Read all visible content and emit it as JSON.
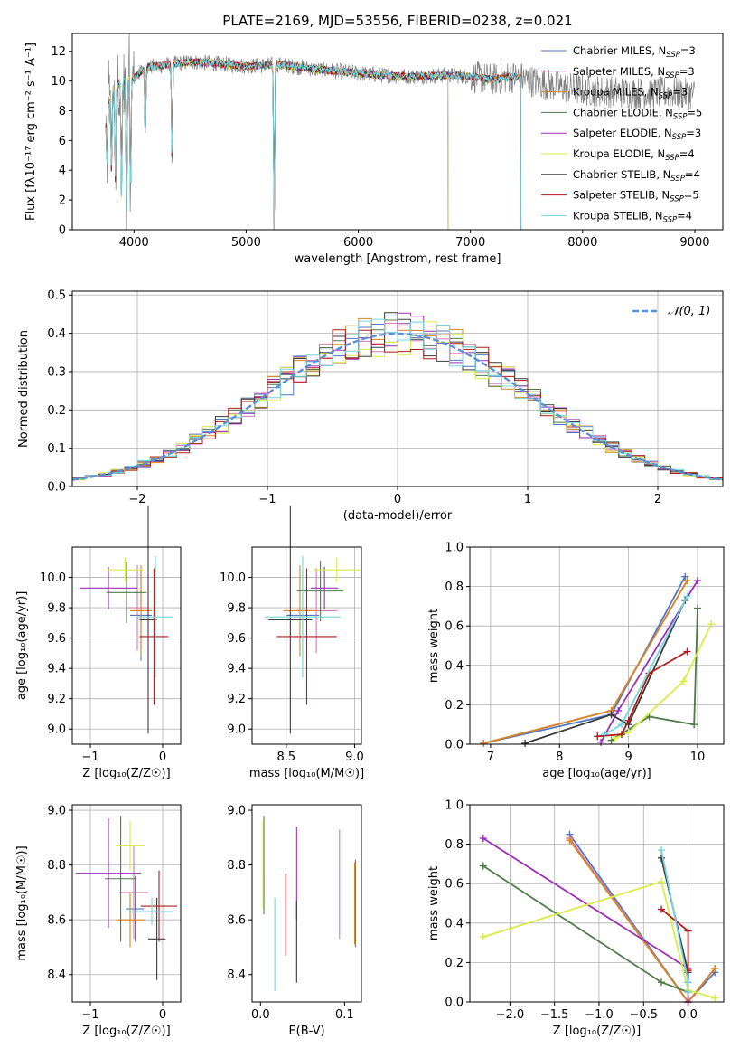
{
  "colors": {
    "Chabrier MILES": "#4e79c7",
    "Salpeter MILES": "#d877b7",
    "Kroupa MILES": "#d9861f",
    "Chabrier ELODIE": "#4f7c4a",
    "Salpeter ELODIE": "#9b2fb5",
    "Kroupa ELODIE": "#d9ec43",
    "Chabrier STELIB": "#3b3b3b",
    "Salpeter STELIB": "#b31c1c",
    "Kroupa STELIB": "#72d6df",
    "data": "#808080",
    "normal": "#5b8fd6"
  },
  "chart_data": [
    {
      "type": "line",
      "id": "spectrum",
      "title": "PLATE=2169, MJD=53556, FIBERID=0238, z=0.021",
      "xlabel": "wavelength [Angstrom, rest frame]",
      "ylabel": "Flux [fλ10⁻¹⁷ erg cm⁻² s⁻¹ A⁻¹]",
      "xlim": [
        3450,
        9250
      ],
      "ylim": [
        0,
        13.2
      ],
      "xticks": [
        4000,
        5000,
        6000,
        7000,
        8000,
        9000
      ],
      "yticks": [
        0,
        2,
        4,
        6,
        8,
        10,
        12
      ],
      "grid": false,
      "legend_position": "upper right",
      "legend": [
        {
          "name": "Chabrier MILES",
          "nssp": "3"
        },
        {
          "name": "Salpeter MILES",
          "nssp": "3"
        },
        {
          "name": "Kroupa MILES",
          "nssp": "3"
        },
        {
          "name": "Chabrier ELODIE",
          "nssp": "5"
        },
        {
          "name": "Salpeter ELODIE",
          "nssp": "3"
        },
        {
          "name": "Kroupa ELODIE",
          "nssp": "4"
        },
        {
          "name": "Chabrier STELIB",
          "nssp": "4"
        },
        {
          "name": "Salpeter STELIB",
          "nssp": "5"
        },
        {
          "name": "Kroupa STELIB",
          "nssp": "4"
        }
      ],
      "continuum": {
        "x": [
          3750,
          3800,
          3900,
          4000,
          4100,
          4300,
          4500,
          4700,
          5000,
          5300,
          5600,
          5900,
          6200,
          6500,
          6800,
          7000,
          7200,
          7300,
          7400,
          7500,
          7600,
          7800,
          8000,
          8200,
          8500,
          8800,
          9000
        ],
        "y": [
          7.5,
          9.5,
          10.0,
          10.2,
          10.9,
          11.1,
          11.3,
          11.2,
          11.0,
          11.1,
          10.8,
          10.6,
          10.4,
          10.3,
          10.4,
          10.3,
          10.1,
          10.2,
          10.3,
          10.1,
          9.9,
          9.6,
          9.4,
          9.3,
          9.2,
          9.2,
          9.1
        ]
      },
      "absorption_lines": [
        {
          "x": 3760,
          "y": 4.2
        },
        {
          "x": 3800,
          "y": 3.8
        },
        {
          "x": 3835,
          "y": 3.3
        },
        {
          "x": 3889,
          "y": 2.2
        },
        {
          "x": 3934,
          "y": 0.8
        },
        {
          "x": 3969,
          "y": 2.0
        },
        {
          "x": 4101,
          "y": 6.3
        },
        {
          "x": 4340,
          "y": 4.5
        },
        {
          "x": 5250,
          "y": 0
        }
      ],
      "model_end_x": 7450,
      "kroupa_elodie_end_x": 6800
    },
    {
      "type": "histogram",
      "id": "residuals",
      "xlabel": "(data-model)/error",
      "ylabel": "Normed distribution",
      "xlim": [
        -2.5,
        2.5
      ],
      "ylim": [
        0,
        0.51
      ],
      "xticks": [
        -2,
        -1,
        0,
        1,
        2
      ],
      "yticks": [
        0,
        0.1,
        0.2,
        0.3,
        0.4,
        0.5
      ],
      "grid": true,
      "bin_width": 0.1,
      "legend_position": "upper right",
      "reference_curve": {
        "label": "𝒩(0, 1)",
        "mean": 0,
        "sigma": 1
      }
    },
    {
      "type": "scatter",
      "id": "age-vs-z",
      "xlabel": "Z [log₁₀(Z/Z☉)]",
      "ylabel": "age  [log₁₀(age/yr)]",
      "xlim": [
        -1.25,
        0.25
      ],
      "ylim": [
        8.9,
        10.2
      ],
      "xticks": [
        -1,
        0
      ],
      "yticks": [
        9.0,
        9.2,
        9.4,
        9.6,
        9.8,
        10.0
      ],
      "grid": true,
      "points": [
        {
          "model": "Chabrier MILES",
          "x": -0.3,
          "xerr": 0.15,
          "y": 9.75,
          "yerr": 0.3
        },
        {
          "model": "Salpeter MILES",
          "x": -0.35,
          "xerr": 0.15,
          "y": 9.8,
          "yerr": 0.28
        },
        {
          "model": "Kroupa MILES",
          "x": -0.3,
          "xerr": 0.15,
          "y": 9.78,
          "yerr": 0.3
        },
        {
          "model": "Chabrier ELODIE",
          "x": -0.5,
          "xerr": 0.28,
          "y": 9.9,
          "yerr": 0.2
        },
        {
          "model": "Salpeter ELODIE",
          "x": -0.75,
          "xerr": 0.4,
          "y": 9.93,
          "yerr": 0.14
        },
        {
          "model": "Kroupa ELODIE",
          "x": -0.52,
          "xerr": 0.25,
          "y": 10.05,
          "yerr": 0.08
        },
        {
          "model": "Chabrier STELIB",
          "x": -0.2,
          "xerr": 0.12,
          "y": 9.72,
          "yerr": 0.75
        },
        {
          "model": "Salpeter STELIB",
          "x": -0.12,
          "xerr": 0.2,
          "y": 9.61,
          "yerr": 0.45
        },
        {
          "model": "Kroupa STELIB",
          "x": -0.1,
          "xerr": 0.25,
          "y": 9.74,
          "yerr": 0.4
        }
      ]
    },
    {
      "type": "scatter",
      "id": "age-vs-mass",
      "xlabel": "mass [log₁₀(M/M☉)]",
      "ylabel": "",
      "xlim": [
        8.25,
        9.05
      ],
      "ylim": [
        8.9,
        10.2
      ],
      "xticks": [
        8.5,
        9.0
      ],
      "yticks": [
        9.0,
        9.2,
        9.4,
        9.6,
        9.8,
        10.0
      ],
      "grid": true,
      "points": [
        {
          "model": "Chabrier MILES",
          "x": 8.62,
          "xerr": 0.12,
          "y": 9.75,
          "yerr": 0.3
        },
        {
          "model": "Salpeter MILES",
          "x": 8.72,
          "xerr": 0.15,
          "y": 9.78,
          "yerr": 0.28
        },
        {
          "model": "Kroupa MILES",
          "x": 8.6,
          "xerr": 0.12,
          "y": 9.78,
          "yerr": 0.3
        },
        {
          "model": "Chabrier ELODIE",
          "x": 8.75,
          "xerr": 0.17,
          "y": 9.91,
          "yerr": 0.2
        },
        {
          "model": "Salpeter ELODIE",
          "x": 8.78,
          "xerr": 0.1,
          "y": 9.93,
          "yerr": 0.14
        },
        {
          "model": "Kroupa ELODIE",
          "x": 8.87,
          "xerr": 0.17,
          "y": 10.05,
          "yerr": 0.08
        },
        {
          "model": "Chabrier STELIB",
          "x": 8.53,
          "xerr": 0.16,
          "y": 9.72,
          "yerr": 0.75
        },
        {
          "model": "Salpeter STELIB",
          "x": 8.65,
          "xerr": 0.22,
          "y": 9.61,
          "yerr": 0.45
        },
        {
          "model": "Kroupa STELIB",
          "x": 8.62,
          "xerr": 0.28,
          "y": 9.74,
          "yerr": 0.4
        }
      ]
    },
    {
      "type": "line",
      "id": "massweight-vs-age",
      "xlabel": "age  [log₁₀(age/yr)]",
      "ylabel": "mass weight",
      "xlim": [
        6.7,
        10.38
      ],
      "ylim": [
        0,
        1.0
      ],
      "xticks": [
        7,
        8,
        9,
        10
      ],
      "yticks": [
        0.0,
        0.2,
        0.4,
        0.6,
        0.8,
        1.0
      ],
      "grid": true,
      "series": [
        {
          "model": "Chabrier MILES",
          "x": [
            6.9,
            8.75,
            9.82
          ],
          "y": [
            0.005,
            0.15,
            0.85
          ]
        },
        {
          "model": "Salpeter MILES",
          "x": [
            6.9,
            8.75,
            9.85
          ],
          "y": [
            0.005,
            0.17,
            0.83
          ]
        },
        {
          "model": "Kroupa MILES",
          "x": [
            6.9,
            8.75,
            9.85
          ],
          "y": [
            0.005,
            0.17,
            0.83
          ]
        },
        {
          "model": "Chabrier ELODIE",
          "x": [
            8.75,
            9.3,
            9.95,
            10.0
          ],
          "y": [
            0.02,
            0.14,
            0.1,
            0.69
          ]
        },
        {
          "model": "Salpeter ELODIE",
          "x": [
            8.6,
            8.85,
            10.0
          ],
          "y": [
            0.01,
            0.17,
            0.83
          ]
        },
        {
          "model": "Kroupa ELODIE",
          "x": [
            8.8,
            9.0,
            9.8,
            10.2
          ],
          "y": [
            0.03,
            0.06,
            0.32,
            0.61
          ]
        },
        {
          "model": "Chabrier STELIB",
          "x": [
            7.5,
            8.75,
            9.0,
            9.82
          ],
          "y": [
            0.005,
            0.15,
            0.1,
            0.73
          ]
        },
        {
          "model": "Salpeter STELIB",
          "x": [
            8.55,
            8.9,
            9.0,
            9.3,
            9.85
          ],
          "y": [
            0.04,
            0.05,
            0.12,
            0.36,
            0.47
          ]
        },
        {
          "model": "Kroupa STELIB",
          "x": [
            8.65,
            8.9,
            9.85
          ],
          "y": [
            0.05,
            0.1,
            0.75
          ]
        }
      ]
    },
    {
      "type": "scatter",
      "id": "mass-vs-z",
      "xlabel": "Z [log₁₀(Z/Z☉)]",
      "ylabel": "mass [log₁₀(M/M☉)]",
      "xlim": [
        -1.25,
        0.25
      ],
      "ylim": [
        8.3,
        9.02
      ],
      "xticks": [
        -1,
        0
      ],
      "yticks": [
        8.4,
        8.6,
        8.8,
        9.0
      ],
      "grid": true,
      "points": [
        {
          "model": "Chabrier MILES",
          "x": -0.38,
          "xerr": 0.12,
          "y": 8.64,
          "yerr": 0.12
        },
        {
          "model": "Salpeter MILES",
          "x": -0.4,
          "xerr": 0.2,
          "y": 8.7,
          "yerr": 0.17
        },
        {
          "model": "Kroupa MILES",
          "x": -0.45,
          "xerr": 0.2,
          "y": 8.6,
          "yerr": 0.1
        },
        {
          "model": "Chabrier ELODIE",
          "x": -0.58,
          "xerr": 0.22,
          "y": 8.75,
          "yerr": 0.23
        },
        {
          "model": "Salpeter ELODIE",
          "x": -0.75,
          "xerr": 0.45,
          "y": 8.77,
          "yerr": 0.2
        },
        {
          "model": "Kroupa ELODIE",
          "x": -0.45,
          "xerr": 0.2,
          "y": 8.87,
          "yerr": 0.09
        },
        {
          "model": "Chabrier STELIB",
          "x": -0.08,
          "xerr": 0.12,
          "y": 8.53,
          "yerr": 0.15
        },
        {
          "model": "Salpeter STELIB",
          "x": -0.05,
          "xerr": 0.25,
          "y": 8.65,
          "yerr": 0.13
        },
        {
          "model": "Kroupa STELIB",
          "x": -0.15,
          "xerr": 0.3,
          "y": 8.63,
          "yerr": 0.05
        }
      ]
    },
    {
      "type": "scatter",
      "id": "mass-vs-ebv",
      "xlabel": "E(B-V)",
      "ylabel": "",
      "xlim": [
        -0.01,
        0.12
      ],
      "ylim": [
        8.3,
        9.02
      ],
      "xticks": [
        0.0,
        0.1
      ],
      "yticks": [
        8.4,
        8.6,
        8.8,
        9.0
      ],
      "grid": false,
      "points": [
        {
          "model": "Chabrier MILES",
          "x": 0.113,
          "y": 8.66,
          "yerr": 0.16
        },
        {
          "model": "Salpeter MILES",
          "x": 0.094,
          "y": 8.73,
          "yerr": 0.2
        },
        {
          "model": "Kroupa MILES",
          "x": 0.112,
          "y": 8.66,
          "yerr": 0.15
        },
        {
          "model": "Chabrier ELODIE",
          "x": 0.004,
          "y": 8.8,
          "yerr": 0.18
        },
        {
          "model": "Salpeter ELODIE",
          "x": 0.043,
          "y": 8.77,
          "yerr": 0.17
        },
        {
          "model": "Kroupa ELODIE",
          "x": 0.003,
          "y": 8.8,
          "yerr": 0.16
        },
        {
          "model": "Chabrier STELIB",
          "x": 0.043,
          "y": 8.52,
          "yerr": 0.15
        },
        {
          "model": "Salpeter STELIB",
          "x": 0.03,
          "y": 8.62,
          "yerr": 0.15
        },
        {
          "model": "Kroupa STELIB",
          "x": 0.017,
          "y": 8.51,
          "yerr": 0.17
        }
      ]
    },
    {
      "type": "line",
      "id": "massweight-vs-z",
      "xlabel": "Z [log₁₀(Z/Z☉)]",
      "ylabel": "mass weight",
      "xlim": [
        -2.45,
        0.4
      ],
      "ylim": [
        0,
        1.0
      ],
      "xticks": [
        -2.0,
        -1.5,
        -1.0,
        -0.5,
        0.0
      ],
      "yticks": [
        0.0,
        0.2,
        0.4,
        0.6,
        0.8,
        1.0
      ],
      "grid": true,
      "series": [
        {
          "model": "Chabrier MILES",
          "x": [
            -1.33,
            0.0,
            0.3
          ],
          "y": [
            0.85,
            0.0,
            0.15
          ]
        },
        {
          "model": "Salpeter MILES",
          "x": [
            -1.33,
            0.0,
            0.3
          ],
          "y": [
            0.83,
            0.0,
            0.17
          ]
        },
        {
          "model": "Kroupa MILES",
          "x": [
            -1.33,
            0.0,
            0.3
          ],
          "y": [
            0.82,
            0.0,
            0.17
          ]
        },
        {
          "model": "Chabrier ELODIE",
          "x": [
            -2.3,
            -0.3,
            0.0
          ],
          "y": [
            0.69,
            0.1,
            0.05
          ]
        },
        {
          "model": "Salpeter ELODIE",
          "x": [
            -2.3,
            0.0,
            0.0
          ],
          "y": [
            0.83,
            0.17,
            0.0
          ]
        },
        {
          "model": "Kroupa ELODIE",
          "x": [
            -2.3,
            -0.3,
            0.0,
            0.3
          ],
          "y": [
            0.33,
            0.61,
            0.06,
            0.02
          ]
        },
        {
          "model": "Chabrier STELIB",
          "x": [
            -0.3,
            0.0,
            0.0
          ],
          "y": [
            0.73,
            0.15,
            0.1
          ]
        },
        {
          "model": "Salpeter STELIB",
          "x": [
            -0.3,
            0.0,
            0.0
          ],
          "y": [
            0.47,
            0.36,
            0.16
          ]
        },
        {
          "model": "Kroupa STELIB",
          "x": [
            -0.3,
            0.0,
            0.0
          ],
          "y": [
            0.77,
            0.1,
            0.05
          ]
        }
      ]
    }
  ]
}
